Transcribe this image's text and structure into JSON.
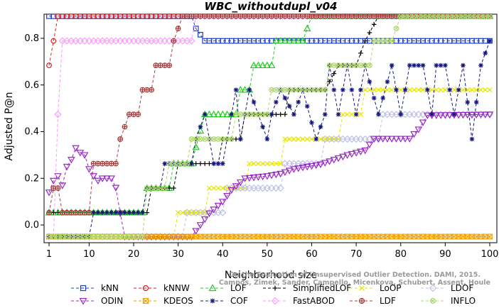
{
  "chart_data": {
    "type": "line",
    "title": "WBC_withoutdupl_v04",
    "xlabel": "Neighborhood size",
    "ylabel": "Adjusted P@n",
    "xlim": [
      0,
      101
    ],
    "ylim": [
      -0.05,
      0.9
    ],
    "xticks": [
      1,
      10,
      20,
      30,
      40,
      50,
      60,
      70,
      80,
      90,
      100
    ],
    "yticks": [
      0.0,
      0.2,
      0.4,
      0.6,
      0.8
    ],
    "ytick_labels": [
      "0.0",
      "0.2",
      "0.4",
      "0.6",
      "0.8"
    ],
    "grid": false,
    "legend_position": "bottom",
    "watermark": [
      "Campos, Zimek, Sander, Campello, Micenkova, Schubert, Assent, Houle",
      "On the Evaluation of Unsupervised Outlier Detection. DAMI, 2015."
    ],
    "series": [
      {
        "name": "kNN",
        "color": "#1a3cc8",
        "marker": "square",
        "keys": [
          [
            1,
            0.895
          ],
          [
            33,
            0.895
          ],
          [
            34,
            0.842
          ],
          [
            36,
            0.789
          ],
          [
            100,
            0.789
          ]
        ]
      },
      {
        "name": "kNNW",
        "color": "#d42020",
        "marker": "circle",
        "keys": [
          [
            1,
            0.684
          ],
          [
            2,
            0.789
          ],
          [
            3,
            0.895
          ],
          [
            100,
            0.895
          ]
        ]
      },
      {
        "name": "LOF",
        "color": "#22cc22",
        "marker": "triangle-up",
        "keys": [
          [
            1,
            0.053
          ],
          [
            22,
            0.053
          ],
          [
            23,
            0.158
          ],
          [
            28,
            0.158
          ],
          [
            29,
            0.263
          ],
          [
            33,
            0.263
          ],
          [
            36,
            0.474
          ],
          [
            43,
            0.474
          ],
          [
            44,
            0.579
          ],
          [
            46,
            0.579
          ],
          [
            47,
            0.684
          ],
          [
            51,
            0.684
          ],
          [
            52,
            0.789
          ],
          [
            58,
            0.789
          ],
          [
            60,
            0.895
          ],
          [
            100,
            0.895
          ]
        ]
      },
      {
        "name": "SimplifiedLOF",
        "color": "#000000",
        "marker": "plus",
        "keys": [
          [
            1,
            0.053
          ],
          [
            23,
            0.053
          ],
          [
            24,
            0.158
          ],
          [
            29,
            0.158
          ],
          [
            30,
            0.263
          ],
          [
            38,
            0.263
          ],
          [
            39,
            0.263
          ],
          [
            40,
            0.368
          ],
          [
            44,
            0.368
          ],
          [
            45,
            0.474
          ],
          [
            54,
            0.474
          ],
          [
            55,
            0.579
          ],
          [
            62,
            0.579
          ],
          [
            63,
            0.579
          ],
          [
            66,
            0.684
          ],
          [
            70,
            0.684
          ],
          [
            72,
            0.789
          ],
          [
            75,
            0.895
          ],
          [
            100,
            0.895
          ]
        ]
      },
      {
        "name": "LoOP",
        "color": "#e6e600",
        "marker": "cross",
        "keys": [
          [
            1,
            -0.05
          ],
          [
            29,
            -0.05
          ],
          [
            30,
            0.053
          ],
          [
            36,
            0.053
          ],
          [
            37,
            0.158
          ],
          [
            45,
            0.158
          ],
          [
            46,
            0.263
          ],
          [
            53,
            0.263
          ],
          [
            54,
            0.368
          ],
          [
            66,
            0.368
          ],
          [
            67,
            0.474
          ],
          [
            71,
            0.474
          ],
          [
            72,
            0.579
          ],
          [
            100,
            0.579
          ]
        ]
      },
      {
        "name": "LDOF",
        "color": "#c0c0e8",
        "marker": "diamond",
        "keys": [
          [
            1,
            -0.05
          ],
          [
            31,
            -0.05
          ],
          [
            32,
            0.053
          ],
          [
            40,
            0.053
          ],
          [
            41,
            0.158
          ],
          [
            53,
            0.158
          ],
          [
            54,
            0.263
          ],
          [
            62,
            0.263
          ],
          [
            63,
            0.368
          ],
          [
            75,
            0.368
          ],
          [
            76,
            0.474
          ],
          [
            100,
            0.474
          ]
        ]
      },
      {
        "name": "ODIN",
        "color": "#9a28c8",
        "marker": "triangle-down",
        "keys": [
          [
            1,
            0.14
          ],
          [
            2,
            0.19
          ],
          [
            3,
            0.21
          ],
          [
            4,
            0.17
          ],
          [
            5,
            0.25
          ],
          [
            6,
            0.28
          ],
          [
            7,
            0.33
          ],
          [
            8,
            0.31
          ],
          [
            9,
            0.3
          ],
          [
            10,
            0.24
          ],
          [
            11,
            0.21
          ],
          [
            12,
            0.19
          ],
          [
            13,
            0.2
          ],
          [
            15,
            0.2
          ],
          [
            16,
            0.16
          ],
          [
            17,
            0.05
          ],
          [
            18,
            -0.05
          ],
          [
            30,
            -0.05
          ],
          [
            33,
            -0.05
          ],
          [
            37,
            0.05
          ],
          [
            40,
            0.1
          ],
          [
            42,
            0.15
          ],
          [
            45,
            0.2
          ],
          [
            50,
            0.21
          ],
          [
            53,
            0.22
          ],
          [
            56,
            0.24
          ],
          [
            62,
            0.26
          ],
          [
            68,
            0.3
          ],
          [
            72,
            0.32
          ],
          [
            74,
            0.37
          ],
          [
            82,
            0.37
          ],
          [
            84,
            0.41
          ],
          [
            85,
            0.44
          ],
          [
            86,
            0.47
          ],
          [
            100,
            0.474
          ]
        ]
      },
      {
        "name": "KDEOS",
        "color": "#f0a000",
        "marker": "square-cross",
        "keys": [
          [
            1,
            -0.05
          ],
          [
            100,
            -0.05
          ]
        ]
      },
      {
        "name": "COF",
        "color": "#14147a",
        "marker": "asterisk",
        "keys": [
          [
            1,
            -0.05
          ],
          [
            10,
            -0.05
          ],
          [
            11,
            0.053
          ],
          [
            22,
            0.053
          ],
          [
            23,
            0.158
          ],
          [
            26,
            0.158
          ],
          [
            27,
            0.263
          ],
          [
            33,
            0.263
          ],
          [
            34,
            0.368
          ],
          [
            36,
            0.474
          ],
          [
            38,
            0.263
          ],
          [
            40,
            0.263
          ],
          [
            41,
            0.368
          ],
          [
            43,
            0.579
          ],
          [
            44,
            0.368
          ],
          [
            46,
            0.579
          ],
          [
            48,
            0.474
          ],
          [
            50,
            0.368
          ],
          [
            51,
            0.474
          ],
          [
            53,
            0.579
          ],
          [
            56,
            0.474
          ],
          [
            58,
            0.579
          ],
          [
            61,
            0.368
          ],
          [
            63,
            0.474
          ],
          [
            64,
            0.684
          ],
          [
            66,
            0.474
          ],
          [
            68,
            0.684
          ],
          [
            70,
            0.474
          ],
          [
            72,
            0.684
          ],
          [
            75,
            0.474
          ],
          [
            78,
            0.684
          ],
          [
            80,
            0.474
          ],
          [
            82,
            0.684
          ],
          [
            85,
            0.684
          ],
          [
            87,
            0.474
          ],
          [
            88,
            0.684
          ],
          [
            90,
            0.684
          ],
          [
            92,
            0.474
          ],
          [
            94,
            0.684
          ],
          [
            96,
            0.368
          ],
          [
            98,
            0.684
          ],
          [
            100,
            0.789
          ]
        ]
      },
      {
        "name": "FastABOD",
        "color": "#ff99ff",
        "marker": "diamond",
        "keys": [
          [
            1,
            -0.05
          ],
          [
            2,
            -0.05
          ],
          [
            3,
            0.474
          ],
          [
            4,
            0.789
          ],
          [
            33,
            0.789
          ],
          [
            34,
            0.895
          ],
          [
            100,
            0.895
          ]
        ]
      },
      {
        "name": "LDF",
        "color": "#a83c3c",
        "marker": "circle-plus",
        "keys": [
          [
            1,
            0.053
          ],
          [
            2,
            0.158
          ],
          [
            3,
            0.158
          ],
          [
            4,
            0.053
          ],
          [
            10,
            0.053
          ],
          [
            11,
            0.263
          ],
          [
            16,
            0.263
          ],
          [
            17,
            0.368
          ],
          [
            19,
            0.474
          ],
          [
            21,
            0.474
          ],
          [
            22,
            0.579
          ],
          [
            24,
            0.579
          ],
          [
            25,
            0.684
          ],
          [
            28,
            0.684
          ],
          [
            29,
            0.789
          ],
          [
            31,
            0.895
          ],
          [
            100,
            0.895
          ]
        ]
      },
      {
        "name": "INFLO",
        "color": "#b0d870",
        "marker": "circle-cross",
        "keys": [
          [
            1,
            -0.05
          ],
          [
            22,
            -0.05
          ],
          [
            23,
            0.158
          ],
          [
            27,
            0.158
          ],
          [
            28,
            0.263
          ],
          [
            32,
            0.263
          ],
          [
            33,
            0.368
          ],
          [
            42,
            0.368
          ],
          [
            43,
            0.474
          ],
          [
            50,
            0.474
          ],
          [
            51,
            0.579
          ],
          [
            63,
            0.579
          ],
          [
            64,
            0.684
          ],
          [
            73,
            0.684
          ],
          [
            74,
            0.789
          ],
          [
            78,
            0.789
          ],
          [
            80,
            0.895
          ],
          [
            100,
            0.895
          ]
        ]
      }
    ],
    "legend_order": [
      "kNN",
      "kNNW",
      "LOF",
      "SimplifiedLOF",
      "LoOP",
      "LDOF",
      "ODIN",
      "KDEOS",
      "COF",
      "FastABOD",
      "LDF",
      "INFLO"
    ]
  }
}
